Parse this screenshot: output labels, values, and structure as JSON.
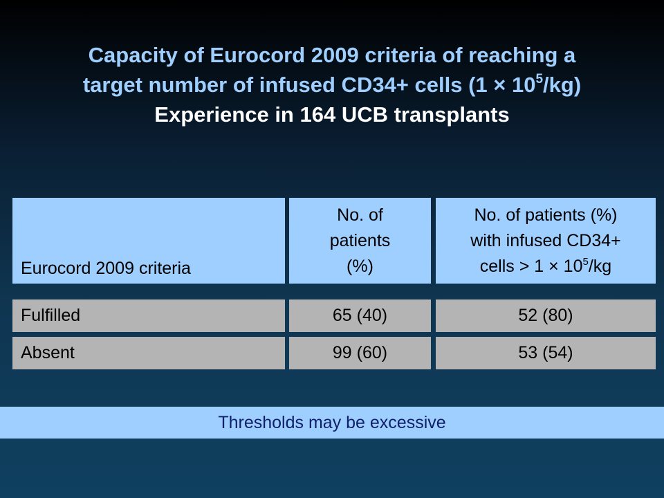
{
  "title": {
    "line1": "Capacity of Eurocord 2009 criteria of reaching a",
    "line2_pre": "target number of infused CD34+ cells (1 × 10",
    "line2_sup": "5",
    "line2_post": "/kg)",
    "line3": "Experience in 164 UCB transplants"
  },
  "table": {
    "headers": {
      "col1": "Eurocord 2009 criteria",
      "col2_line1": "No. of",
      "col2_line2": "patients",
      "col2_line3": "(%)",
      "col3_line1": "No. of patients (%)",
      "col3_line2": "with infused CD34+",
      "col3_line3_pre": "cells > 1 × 10",
      "col3_line3_sup": "5",
      "col3_line3_post": "/kg"
    },
    "rows": [
      {
        "criteria": "Fulfilled",
        "patients": "65 (40)",
        "infused": "52 (80)"
      },
      {
        "criteria": "Absent",
        "patients": "99 (60)",
        "infused": "53 (54)"
      }
    ]
  },
  "banner": "Thresholds may be excessive"
}
